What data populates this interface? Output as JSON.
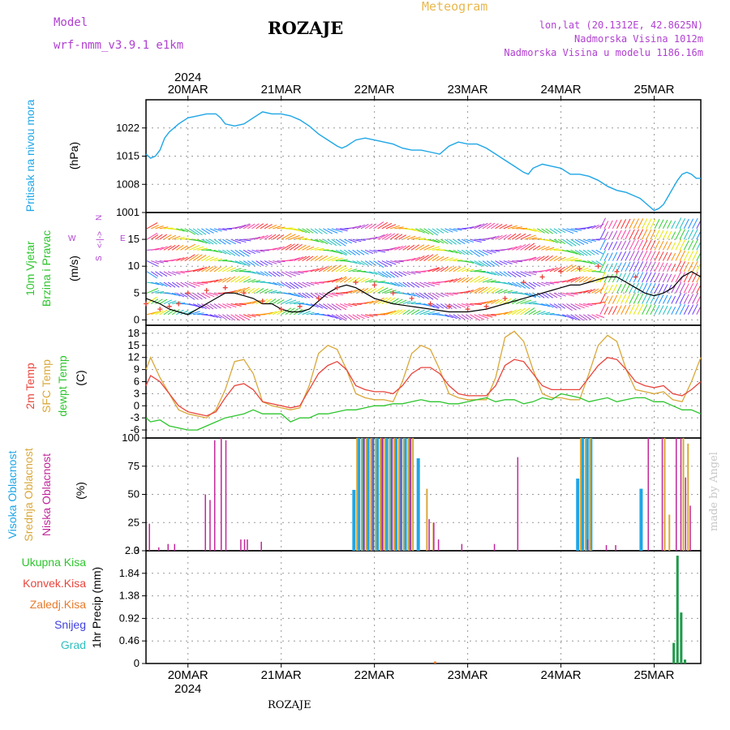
{
  "header": {
    "title": "ROZAJE",
    "model_label": "Model",
    "model_name": "wrf-nmm_v3.9.1 e1km",
    "product_title": "Meteogram",
    "lonlat": "lon,lat (20.1312E, 42.8625N)",
    "elevation": "Nadmorska Visina 1012m",
    "model_elevation": "Nadmorska Visina u modelu 1186.16m",
    "bottom_title": "ROZAJE",
    "credit": "made by Angel"
  },
  "colors": {
    "pressure": "#1ea6e6",
    "temp2m": "#e8453c",
    "sfc_temp": "#d9a83a",
    "dewpoint": "#2ec52e",
    "cloud_high": "#1ea6e6",
    "cloud_mid": "#d9a83a",
    "cloud_low": "#c0289a",
    "precip_total": "#1f9a4a",
    "precip_conv": "#e8453c",
    "precip_frozen": "#e87a2a",
    "precip_snow": "#4040e0",
    "precip_graupel": "#30c0c0",
    "wind_speed": "#000000",
    "wind_gust": "#e8453c"
  },
  "chart_data": [
    {
      "type": "line",
      "panel": "pressure",
      "ylabel": [
        "Pritisak na nivou mora",
        "(hPa)"
      ],
      "ylim": [
        1001,
        1029
      ],
      "yticks": [
        1001,
        1008,
        1015,
        1022
      ],
      "top_axis": {
        "year": "2024",
        "days": [
          "20MAR",
          "21MAR",
          "22MAR",
          "23MAR",
          "24MAR",
          "25MAR"
        ]
      },
      "x_start_day": 19.55,
      "x_end_day": 25.5,
      "grid": true,
      "series": [
        {
          "key": "pressure",
          "x": [
            19.55,
            19.6,
            19.65,
            19.7,
            19.75,
            19.8,
            19.9,
            20.0,
            20.1,
            20.2,
            20.3,
            20.35,
            20.4,
            20.5,
            20.6,
            20.7,
            20.8,
            20.9,
            21.0,
            21.1,
            21.2,
            21.3,
            21.4,
            21.5,
            21.6,
            21.65,
            21.7,
            21.8,
            21.9,
            22.0,
            22.1,
            22.2,
            22.3,
            22.4,
            22.5,
            22.6,
            22.7,
            22.8,
            22.9,
            23.0,
            23.1,
            23.2,
            23.3,
            23.4,
            23.5,
            23.6,
            23.65,
            23.7,
            23.8,
            23.9,
            24.0,
            24.1,
            24.2,
            24.3,
            24.4,
            24.5,
            24.6,
            24.7,
            24.8,
            24.85,
            24.9,
            24.95,
            25.0,
            25.05,
            25.1,
            25.15,
            25.2,
            25.25,
            25.3,
            25.35,
            25.4,
            25.45,
            25.5
          ],
          "values": [
            1015.5,
            1014.5,
            1015.0,
            1016.5,
            1019.5,
            1021.0,
            1023.0,
            1024.5,
            1025.0,
            1025.5,
            1025.5,
            1024.5,
            1023.0,
            1022.5,
            1023.0,
            1024.5,
            1026.0,
            1025.5,
            1025.5,
            1025.0,
            1024.0,
            1022.5,
            1020.5,
            1019.0,
            1017.5,
            1017.0,
            1017.5,
            1019.0,
            1019.5,
            1019.0,
            1018.5,
            1018.0,
            1017.0,
            1016.5,
            1016.5,
            1016.0,
            1015.5,
            1017.5,
            1018.5,
            1018.0,
            1018.0,
            1017.0,
            1015.5,
            1014.0,
            1012.5,
            1011.0,
            1010.5,
            1012.0,
            1013.0,
            1012.5,
            1012.0,
            1010.5,
            1010.5,
            1010.0,
            1009.0,
            1007.5,
            1006.5,
            1006.0,
            1005.0,
            1004.5,
            1003.5,
            1002.5,
            1001.5,
            1002.0,
            1003.0,
            1005.0,
            1007.0,
            1009.0,
            1010.5,
            1011.0,
            1010.5,
            1009.5,
            1009.5
          ]
        }
      ]
    },
    {
      "type": "line",
      "panel": "wind",
      "ylabel": [
        "10m Vjetar",
        "Brzina i Pravac",
        "(m/s)"
      ],
      "direction_key": [
        "N",
        "S",
        "E",
        "W",
        "<-|->"
      ],
      "ylim": [
        -1,
        20
      ],
      "yticks": [
        0,
        5,
        10,
        15
      ],
      "grid": true,
      "series": [
        {
          "key": "wind_speed",
          "x": [
            19.55,
            19.7,
            19.8,
            19.9,
            20.0,
            20.1,
            20.2,
            20.3,
            20.4,
            20.5,
            20.6,
            20.7,
            20.8,
            20.9,
            21.0,
            21.1,
            21.2,
            21.3,
            21.4,
            21.5,
            21.6,
            21.7,
            21.8,
            21.9,
            22.0,
            22.2,
            22.4,
            22.6,
            22.8,
            23.0,
            23.2,
            23.4,
            23.5,
            23.6,
            23.7,
            23.8,
            23.9,
            24.0,
            24.1,
            24.2,
            24.3,
            24.4,
            24.5,
            24.6,
            24.7,
            24.8,
            24.9,
            25.0,
            25.1,
            25.2,
            25.3,
            25.4,
            25.5
          ],
          "values": [
            4,
            3,
            2,
            1.5,
            1,
            2,
            3,
            4,
            5,
            5,
            4.5,
            4,
            3,
            3,
            2,
            1.5,
            1.5,
            2,
            3.5,
            5,
            6,
            6.5,
            6,
            5,
            4,
            3,
            2.5,
            2,
            1.5,
            1.5,
            2,
            3,
            3.5,
            4,
            4.5,
            5,
            5.5,
            6,
            6.5,
            6.5,
            7,
            7.5,
            8,
            8,
            7,
            6,
            5,
            4.5,
            5,
            6,
            8,
            9,
            8
          ]
        },
        {
          "key": "wind_gust",
          "x": [
            19.55,
            19.7,
            19.8,
            19.9,
            20.0,
            20.2,
            20.4,
            20.6,
            20.8,
            21.0,
            21.2,
            21.4,
            21.6,
            21.8,
            22.0,
            22.2,
            22.4,
            22.6,
            22.8,
            23.0,
            23.2,
            23.4,
            23.6,
            23.8,
            24.0,
            24.2,
            24.4,
            24.6,
            24.8
          ],
          "values": [
            3,
            2,
            2.5,
            3,
            5,
            5.5,
            6,
            5,
            3.5,
            2,
            2.5,
            4,
            6,
            7,
            6.5,
            5,
            4,
            3,
            2.5,
            2,
            2.5,
            4,
            7,
            8,
            9,
            9.5,
            10,
            9,
            8
          ]
        }
      ]
    },
    {
      "type": "line",
      "panel": "temperature",
      "ylabel": [
        "2m Temp",
        "SFC Temp",
        "dewpt Temp",
        "(C)"
      ],
      "ylim": [
        -8,
        20
      ],
      "yticks": [
        -6,
        -3,
        0,
        3,
        6,
        9,
        12,
        15,
        18
      ],
      "grid": true,
      "series": [
        {
          "key": "temp2m",
          "x": [
            19.55,
            19.6,
            19.7,
            19.8,
            19.9,
            20.0,
            20.1,
            20.2,
            20.3,
            20.4,
            20.5,
            20.6,
            20.7,
            20.8,
            20.9,
            21.0,
            21.1,
            21.2,
            21.3,
            21.4,
            21.5,
            21.6,
            21.7,
            21.8,
            21.9,
            22.0,
            22.1,
            22.2,
            22.3,
            22.4,
            22.5,
            22.6,
            22.7,
            22.8,
            22.9,
            23.0,
            23.1,
            23.2,
            23.3,
            23.4,
            23.5,
            23.6,
            23.7,
            23.8,
            23.9,
            24.0,
            24.1,
            24.2,
            24.3,
            24.4,
            24.5,
            24.6,
            24.7,
            24.8,
            24.9,
            25.0,
            25.1,
            25.2,
            25.3,
            25.4,
            25.5
          ],
          "values": [
            5,
            7.5,
            6,
            3,
            0,
            -1.5,
            -2,
            -2.5,
            -1.5,
            2,
            5,
            5.5,
            4,
            1,
            0.5,
            0,
            -0.5,
            0,
            4,
            8,
            10,
            11,
            9,
            5,
            4,
            3.5,
            3.5,
            3,
            5,
            8,
            9.5,
            9.5,
            8,
            5,
            3,
            2.5,
            2.5,
            2.5,
            5,
            10,
            11.5,
            11,
            8,
            5,
            4,
            4,
            4,
            4,
            7,
            10,
            12,
            11.5,
            9,
            6,
            5,
            4.5,
            5,
            3,
            2.5,
            4,
            6
          ]
        },
        {
          "key": "sfc_temp",
          "x": [
            19.55,
            19.6,
            19.7,
            19.8,
            19.9,
            20.0,
            20.1,
            20.2,
            20.3,
            20.4,
            20.5,
            20.6,
            20.7,
            20.8,
            20.9,
            21.0,
            21.1,
            21.2,
            21.3,
            21.4,
            21.5,
            21.6,
            21.7,
            21.8,
            21.9,
            22.0,
            22.1,
            22.2,
            22.3,
            22.4,
            22.5,
            22.6,
            22.7,
            22.8,
            22.9,
            23.0,
            23.1,
            23.2,
            23.3,
            23.4,
            23.5,
            23.6,
            23.7,
            23.8,
            23.9,
            24.0,
            24.1,
            24.2,
            24.3,
            24.4,
            24.5,
            24.6,
            24.7,
            24.8,
            24.9,
            25.0,
            25.1,
            25.2,
            25.3,
            25.4,
            25.5
          ],
          "values": [
            9,
            12,
            7,
            3,
            -1,
            -2,
            -2.5,
            -3,
            -1,
            4,
            11,
            11.5,
            8,
            1,
            0,
            -0.5,
            -1,
            -0.5,
            5,
            13,
            15,
            14,
            9,
            3,
            2,
            1.5,
            1.5,
            1,
            6,
            13,
            15,
            14,
            9,
            3,
            2,
            1.5,
            1.5,
            1.5,
            7,
            17,
            18.5,
            16,
            9,
            3,
            2,
            2,
            1.5,
            1.5,
            8,
            15,
            17.5,
            16,
            9,
            4,
            3.5,
            3,
            3.5,
            1.5,
            1,
            6,
            12
          ]
        },
        {
          "key": "dewpoint",
          "x": [
            19.55,
            19.6,
            19.7,
            19.8,
            19.9,
            20.0,
            20.1,
            20.2,
            20.3,
            20.4,
            20.5,
            20.6,
            20.7,
            20.8,
            20.9,
            21.0,
            21.1,
            21.2,
            21.3,
            21.4,
            21.5,
            21.6,
            21.7,
            21.8,
            21.9,
            22.0,
            22.1,
            22.2,
            22.3,
            22.4,
            22.5,
            22.6,
            22.7,
            22.8,
            22.9,
            23.0,
            23.1,
            23.2,
            23.3,
            23.4,
            23.5,
            23.6,
            23.7,
            23.8,
            23.9,
            24.0,
            24.1,
            24.2,
            24.3,
            24.4,
            24.5,
            24.6,
            24.7,
            24.8,
            24.9,
            25.0,
            25.1,
            25.2,
            25.3,
            25.4,
            25.5
          ],
          "values": [
            -3,
            -4,
            -3.5,
            -5,
            -5.5,
            -6,
            -6,
            -5,
            -4,
            -3,
            -2.5,
            -2,
            -1,
            -2,
            -2,
            -2,
            -4,
            -3,
            -3,
            -2,
            -2,
            -1.5,
            -1,
            -1,
            -0.5,
            0,
            0,
            0.5,
            0.5,
            1,
            1.5,
            1,
            1,
            0.5,
            0.5,
            1,
            1.5,
            2,
            1,
            1.5,
            1.5,
            0.5,
            1,
            2,
            1.5,
            3,
            2.5,
            2,
            1,
            1.5,
            2,
            1,
            1.5,
            2,
            2,
            1,
            1,
            0,
            -1,
            -1,
            -2
          ]
        }
      ]
    },
    {
      "type": "bar",
      "panel": "cloud",
      "ylabel": [
        "Visoka Oblacnost",
        "Srednja Oblacnost",
        "Niska Oblacnost",
        "(%)"
      ],
      "ylim": [
        0,
        100
      ],
      "yticks": [
        0,
        25,
        50,
        75,
        100
      ],
      "grid": true,
      "series": [
        {
          "key": "cloud_low",
          "x": [
            19.6,
            19.7,
            19.8,
            19.87,
            20.2,
            20.25,
            20.3,
            20.37,
            20.42,
            20.58,
            20.62,
            20.65,
            20.8,
            21.9,
            22.0,
            22.1,
            22.2,
            22.3,
            22.4,
            22.6,
            22.65,
            22.7,
            22.95,
            23.3,
            23.55,
            24.3,
            24.5,
            24.6,
            24.95,
            25.1,
            25.25,
            25.3,
            25.35,
            25.4
          ],
          "values": [
            24,
            3,
            6,
            6,
            50,
            45,
            98,
            100,
            98,
            10,
            10,
            10,
            8,
            100,
            100,
            100,
            100,
            100,
            100,
            28,
            25,
            10,
            6,
            6,
            83,
            10,
            5,
            5,
            100,
            100,
            100,
            100,
            65,
            40
          ]
        },
        {
          "key": "cloud_mid",
          "x": [
            21.8,
            21.85,
            21.9,
            21.95,
            22.0,
            22.05,
            22.1,
            22.15,
            22.2,
            22.25,
            22.3,
            22.35,
            22.4,
            22.55,
            22.62,
            24.2,
            24.25,
            24.3,
            25.1,
            25.15,
            25.3,
            25.35
          ],
          "values": [
            100,
            100,
            100,
            100,
            100,
            100,
            100,
            100,
            100,
            100,
            100,
            100,
            100,
            55,
            25,
            100,
            100,
            100,
            100,
            32,
            100,
            95
          ]
        },
        {
          "key": "cloud_high",
          "x": [
            21.78,
            21.83,
            21.88,
            21.93,
            21.98,
            22.03,
            22.08,
            22.13,
            22.18,
            22.23,
            22.28,
            22.33,
            22.38,
            22.47,
            24.18,
            24.23,
            24.28,
            24.32,
            24.86
          ],
          "values": [
            54,
            100,
            100,
            100,
            100,
            100,
            100,
            100,
            100,
            100,
            100,
            100,
            100,
            82,
            64,
            100,
            100,
            100,
            55
          ]
        }
      ]
    },
    {
      "type": "bar",
      "panel": "precip",
      "ylabel": [
        "Ukupna Kisa",
        "Konvek.Kisa",
        "Zaledj.Kisa",
        "Snijeg",
        "Grad",
        "1hr Precip (mm)"
      ],
      "ylim": [
        0,
        2.3
      ],
      "yticks": [
        0,
        0.46,
        0.92,
        1.38,
        1.84,
        2.3
      ],
      "bottom_axis": {
        "days": [
          "20MAR",
          "21MAR",
          "22MAR",
          "23MAR",
          "24MAR",
          "25MAR"
        ],
        "year": "2024"
      },
      "grid": true,
      "series": [
        {
          "key": "precip_total",
          "x": [
            25.21,
            25.25,
            25.29,
            25.33
          ],
          "values": [
            0.42,
            2.2,
            1.04,
            0.08
          ]
        },
        {
          "key": "precip_frozen",
          "x": [
            22.65
          ],
          "values": [
            0.04
          ]
        }
      ]
    }
  ]
}
